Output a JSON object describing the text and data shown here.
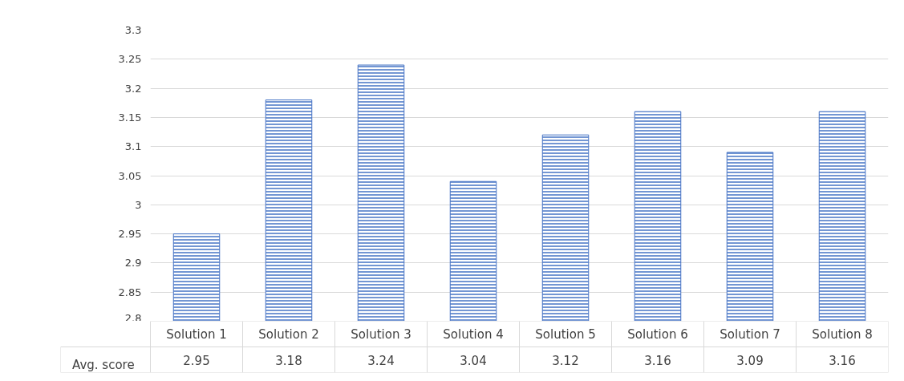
{
  "chart_data": {
    "type": "bar",
    "categories": [
      "Solution 1",
      "Solution 2",
      "Solution 3",
      "Solution 4",
      "Solution 5",
      "Solution 6",
      "Solution 7",
      "Solution 8"
    ],
    "series": [
      {
        "name": "Avg. score",
        "color": "#4472c4",
        "values": [
          2.95,
          3.18,
          3.24,
          3.04,
          3.12,
          3.16,
          3.09,
          3.16
        ]
      }
    ],
    "ylim": [
      2.8,
      3.3
    ],
    "yticks": [
      2.8,
      2.85,
      2.9,
      2.95,
      3,
      3.05,
      3.1,
      3.15,
      3.2,
      3.25,
      3.3
    ],
    "grid": "y",
    "data_labels": true
  }
}
